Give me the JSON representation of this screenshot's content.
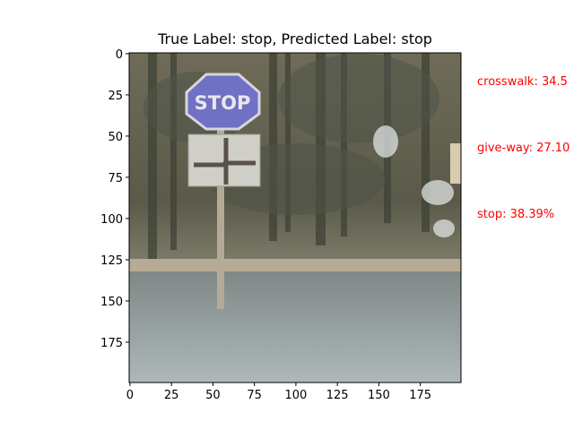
{
  "chart_data": {
    "type": "image",
    "title": "True Label: stop, Predicted Label: stop",
    "xlim": [
      0,
      199
    ],
    "ylim": [
      199,
      0
    ],
    "xticks": [
      0,
      25,
      50,
      75,
      100,
      125,
      150,
      175
    ],
    "yticks": [
      0,
      25,
      50,
      75,
      100,
      125,
      150,
      175
    ],
    "xtick_labels": [
      "0",
      "25",
      "50",
      "75",
      "100",
      "125",
      "150",
      "175"
    ],
    "ytick_labels": [
      "0",
      "25",
      "50",
      "75",
      "100",
      "125",
      "150",
      "175"
    ],
    "predictions": [
      {
        "label": "crosswalk",
        "percent": 34.5,
        "text": "crosswalk: 34.5"
      },
      {
        "label": "give-way",
        "percent": 27.1,
        "text": "give-way: 27.10"
      },
      {
        "label": "stop",
        "percent": 38.39,
        "text": "stop: 38.39%"
      }
    ],
    "annotation_color": "#ff0000",
    "image_content": {
      "sign_text": "STOP",
      "sign_color": "#7272c8"
    }
  }
}
